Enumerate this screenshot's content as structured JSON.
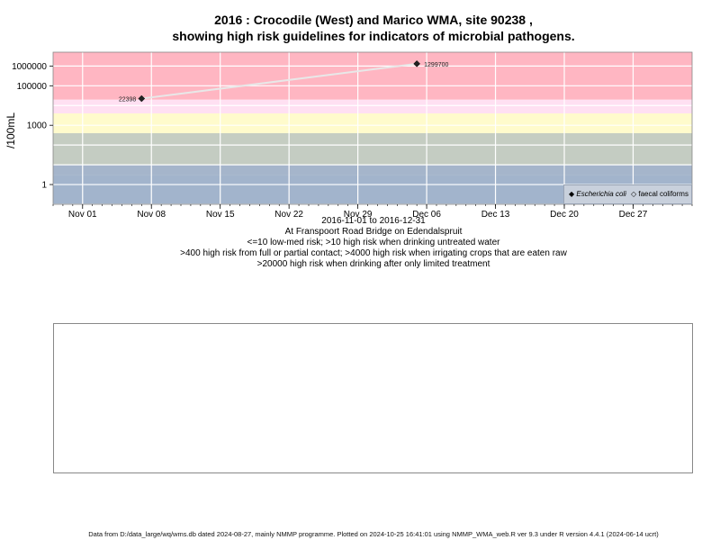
{
  "title_line1": "2016 : Crocodile (West) and Marico WMA, site 90238 ,",
  "title_line2": "showing high risk guidelines for indicators of microbial pathogens.",
  "sub_date_range": "2016-11-01 to 2016-12-31",
  "sub_location": "At Franspoort Road Bridge on Edendalspruit",
  "guideline_1": "<=10 low-med risk; >10 high risk when drinking untreated water",
  "guideline_2": ">400 high risk from full or partial contact; >4000 high risk when irrigating crops that are eaten raw",
  "guideline_3": ">20000 high risk when drinking after only limited treatment",
  "footer": "Data from D:/data_large/wq/wms.db dated 2024-08-27, mainly NMMP programme. Plotted on 2024-10-25 16:41:01 using NMMP_WMA_web.R ver 9.3 under R version 4.4.1 (2024-06-14 ucrt)",
  "legend": {
    "ecoli": "Escherichia coli",
    "fc": "faecal coliforms"
  },
  "chart_data": {
    "type": "scatter",
    "ylabel": "/100mL",
    "y_scale": "log",
    "x_range": [
      "2016-10-29",
      "2017-01-02"
    ],
    "y_range": [
      0.1,
      5000000
    ],
    "y_ticks": [
      {
        "value": 1,
        "label": "1"
      },
      {
        "value": 1000,
        "label": "1000"
      },
      {
        "value": 100000,
        "label": "100000"
      },
      {
        "value": 1000000,
        "label": "1000000"
      }
    ],
    "x_ticks": [
      {
        "date": "2016-11-01",
        "label": "Nov 01"
      },
      {
        "date": "2016-11-08",
        "label": "Nov 08"
      },
      {
        "date": "2016-11-15",
        "label": "Nov 15"
      },
      {
        "date": "2016-11-22",
        "label": "Nov 22"
      },
      {
        "date": "2016-11-29",
        "label": "Nov 29"
      },
      {
        "date": "2016-12-06",
        "label": "Dec 06"
      },
      {
        "date": "2016-12-13",
        "label": "Dec 13"
      },
      {
        "date": "2016-12-20",
        "label": "Dec 20"
      },
      {
        "date": "2016-12-27",
        "label": "Dec 27"
      }
    ],
    "risk_bands": [
      {
        "from": 0.1,
        "to": 3,
        "color": "#a2b4cc"
      },
      {
        "from": 3,
        "to": 10,
        "color": "#a5b5cb"
      },
      {
        "from": 10,
        "to": 100,
        "color": "#c4ccc2"
      },
      {
        "from": 100,
        "to": 400,
        "color": "#c5cdc2"
      },
      {
        "from": 400,
        "to": 4000,
        "color": "#fffbcc"
      },
      {
        "from": 4000,
        "to": 20000,
        "color": "#ffe0f2"
      },
      {
        "from": 20000,
        "to": 5000000,
        "color": "#ffb6c2"
      }
    ],
    "series": [
      {
        "name": "Escherichia coli",
        "marker": "diamond",
        "color": "#222222",
        "points": [
          {
            "date": "2016-11-07",
            "value": 22398,
            "label": "22398"
          },
          {
            "date": "2016-12-05",
            "value": 1299700,
            "label": "1299700"
          }
        ]
      }
    ],
    "line_color": "#e8e8e8",
    "grid": true
  }
}
